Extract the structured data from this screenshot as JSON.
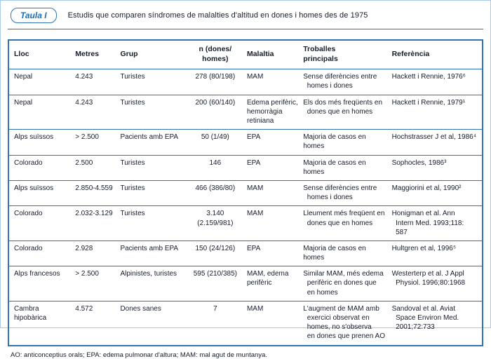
{
  "page": {
    "tag_label": "Taula I",
    "title": "Estudis que comparen síndromes de malalties d'altitud en dones i homes des de 1975",
    "footnote": "AO: anticonceptius orals; EPA: edema pulmonar d'altura; MAM: mal agut de muntanya.",
    "accent_color": "#2e74b5"
  },
  "table": {
    "columns": [
      "Lloc",
      "Metres",
      "Grup",
      "n (dones/\nhomes)",
      "Malaltia",
      "Troballes\nprincipals",
      "Referència"
    ],
    "rows": [
      [
        "Nepal",
        "4.243",
        "Turistes",
        "278 (80/198)",
        "MAM",
        "Sense diferències entre\n  homes i dones",
        "Hackett i Rennie, 1976⁶"
      ],
      [
        "Nepal",
        "4.243",
        "Turistes",
        "200 (60/140)",
        "Edema perifèric,\nhemorràgia\nretiniana",
        "Els dos més freqüents en\n  dones que en homes",
        "Hackett i Rennie, 1979¹"
      ],
      [
        "Alps suïssos",
        "> 2.500",
        "Pacients amb EPA",
        "50 (1/49)",
        "EPA",
        "Majoria de casos en homes",
        "Hochstrasser J et al, 1986⁴"
      ],
      [
        "Colorado",
        "2.500",
        "Turistes",
        "146",
        "EPA",
        "Majoria de casos en homes",
        "Sophocles, 1986³"
      ],
      [
        "Alps suïssos",
        "2.850-4.559",
        "Turistes",
        "466 (386/80)",
        "MAM",
        "Sense diferències entre\n  homes i dones",
        "Maggiorini et al, 1990²"
      ],
      [
        "Colorado",
        "2.032-3.129",
        "Turistes",
        "3.140 (2.159/981)",
        "MAM",
        "Lleument més freqüent en\n  dones que en homes",
        "Honigman et al. Ann\n  Intern Med. 1993;118:\n  587"
      ],
      [
        "Colorado",
        "2.928",
        "Pacients amb EPA",
        "150 (24/126)",
        "EPA",
        "Majoria de casos en homes",
        "Hultgren et al, 1996⁵"
      ],
      [
        "Alps francesos",
        "> 2.500",
        "Alpinistes, turistes",
        "595 (210/385)",
        "MAM, edema\nperifèric",
        "Similar MAM, més edema\n  perifèric en dones que\n  en homes",
        "Westerterp et al. J Appl\n  Physiol. 1996;80:1968"
      ],
      [
        "Cambra hipobàrica",
        "4.572",
        "Dones sanes",
        "7",
        "MAM",
        "L'augment de MAM amb\n  exercici observat en\n  homes, no s'observa\n  en dones que prenen AO",
        "Sandoval et al. Aviat\n  Space Environ Med.\n  2001;72:733"
      ]
    ]
  }
}
